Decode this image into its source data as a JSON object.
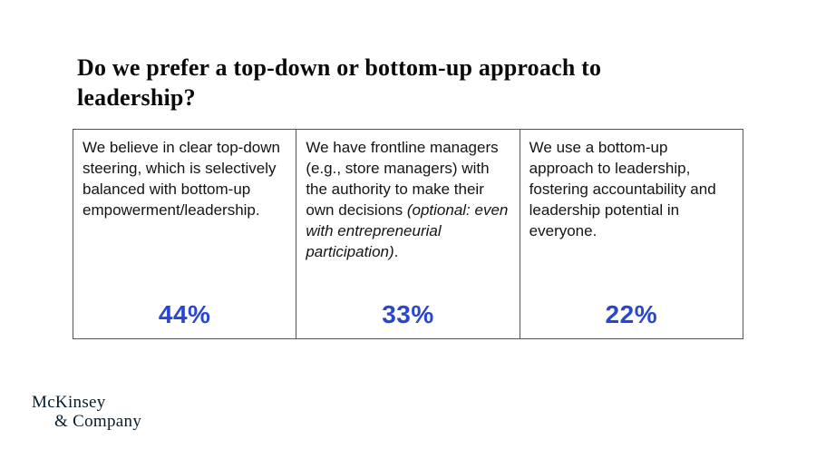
{
  "title": "Do we prefer a top-down or bottom-up approach to leadership?",
  "cards": [
    {
      "parts": [
        "We believe in clear top-down steering, which is selectively balanced with bottom-up empowerment/leadership.",
        "",
        ""
      ],
      "percent": "44%"
    },
    {
      "parts": [
        "We have frontline managers (e.g., store managers) with the authority to make their own decisions ",
        "(optional: even with entrepreneurial participation)",
        "."
      ],
      "percent": "33%"
    },
    {
      "parts": [
        "We use a bottom-up approach to leadership, fostering accountability and leadership potential in everyone.",
        "",
        ""
      ],
      "percent": "22%"
    }
  ],
  "logo": {
    "line1": "McKinsey",
    "line2": "& Company"
  },
  "colors": {
    "accent_blue": "#2946CE",
    "border_gray": "#545454",
    "logo_navy": "#051C2C"
  }
}
